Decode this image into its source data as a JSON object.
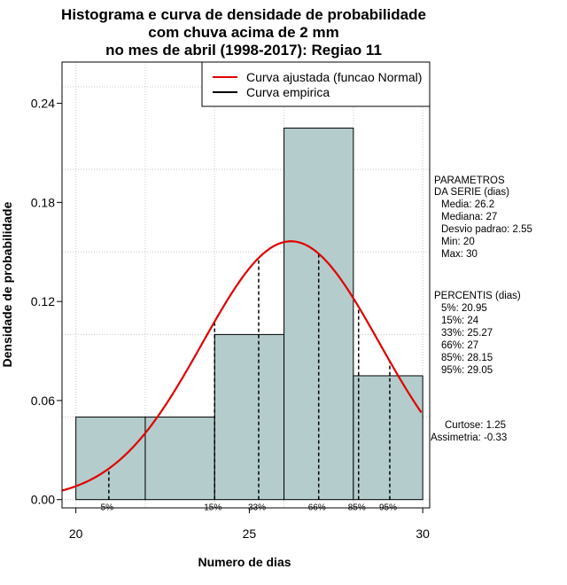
{
  "title_lines": [
    "Histograma e curva de densidade de probabilidade",
    "com chuva acima de 2 mm",
    "no mes de abril (1998-2017): Regiao 11"
  ],
  "chart_data": {
    "type": "bar",
    "xlabel": "Numero de dias",
    "ylabel": "Densidade de probabilidade",
    "xlim": [
      19.6,
      30.2
    ],
    "ylim": [
      -0.005,
      0.265
    ],
    "x_ticks": [
      20,
      25,
      30
    ],
    "y_ticks": [
      0.0,
      0.06,
      0.12,
      0.18,
      0.24
    ],
    "y_tick_labels": [
      "0.00",
      "0.06",
      "0.12",
      "0.18",
      "0.24"
    ],
    "grid": true,
    "bins": [
      {
        "x0": 20,
        "x1": 22,
        "density": 0.05
      },
      {
        "x0": 22,
        "x1": 24,
        "density": 0.05
      },
      {
        "x0": 24,
        "x1": 26,
        "density": 0.1
      },
      {
        "x0": 26,
        "x1": 28,
        "density": 0.225
      },
      {
        "x0": 28,
        "x1": 30,
        "density": 0.075
      }
    ],
    "bar_color": "#b4cccc",
    "normal_curve": {
      "name": "Curva ajustada (funcao Normal)",
      "mean": 26.2,
      "sd": 2.55,
      "color": "#e00000"
    },
    "empirical_curve": {
      "name": "Curva empirica",
      "color": "#000000"
    },
    "percentile_lines": [
      {
        "label": "5%",
        "x": 20.95
      },
      {
        "label": "15%",
        "x": 24
      },
      {
        "label": "33%",
        "x": 25.27
      },
      {
        "label": "66%",
        "x": 27
      },
      {
        "label": "85%",
        "x": 28.15
      },
      {
        "label": "95%",
        "x": 29.05
      }
    ],
    "legend_position": "top-right"
  },
  "stats_panel": {
    "params_header_1": "PARAMETROS",
    "params_header_2": "DA SERIE (dias)",
    "media": "Media: 26.2",
    "mediana": "Mediana: 27",
    "desvio": "Desvio padrao: 2.55",
    "min": "Min: 20",
    "max": "Max: 30",
    "percentis_header": "PERCENTIS (dias)",
    "p5": "5%: 20.95",
    "p15": "15%: 24",
    "p33": "33%: 25.27",
    "p66": "66%: 27",
    "p85": "85%: 28.15",
    "p95": "95%: 29.05",
    "curtose": "Curtose: 1.25",
    "assimetria": "Assimetria: -0.33"
  }
}
